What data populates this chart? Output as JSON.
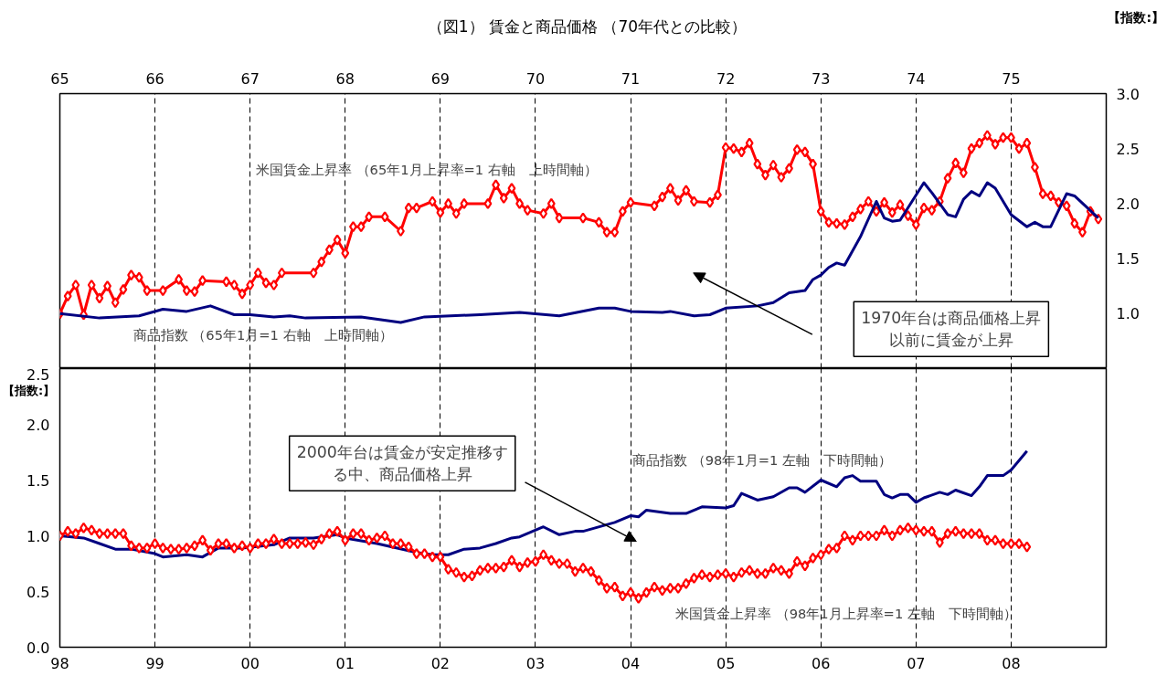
{
  "chart_data": [
    {
      "type": "line",
      "title": "（図1） 賃金と商品価格 （70年代との比較）",
      "ylabel": "【指数:】",
      "xlim": [
        "1965-01",
        "1976-01"
      ],
      "xticks": [
        {
          "value": "1965",
          "label": "65"
        },
        {
          "value": "1966",
          "label": "66"
        },
        {
          "value": "1967",
          "label": "67"
        },
        {
          "value": "1968",
          "label": "68"
        },
        {
          "value": "1969",
          "label": "69"
        },
        {
          "value": "1970",
          "label": "70"
        },
        {
          "value": "1971",
          "label": "71"
        },
        {
          "value": "1972",
          "label": "72"
        },
        {
          "value": "1973",
          "label": "73"
        },
        {
          "value": "1974",
          "label": "74"
        },
        {
          "value": "1975",
          "label": "75"
        }
      ],
      "ylim": [
        0.5,
        3
      ],
      "yticks": [
        {
          "value": 1,
          "label": "1.0"
        },
        1.5,
        {
          "value": 2,
          "label": "2.0"
        },
        2.5,
        {
          "value": 3,
          "label": "3.0"
        }
      ],
      "grid": "x",
      "annotations": [
        "1970年台は商品価格上昇以前に賃金が上昇"
      ],
      "series": [
        {
          "name": "米国賃金上昇率 （65年1月上昇率=1 右軸　上時間軸）",
          "color": "#ff0000",
          "marker": "diamond",
          "x": [
            "1965-01",
            "1965-02",
            "1965-03",
            "1965-04",
            "1965-05",
            "1965-06",
            "1965-07",
            "1965-08",
            "1965-09",
            "1965-10",
            "1965-11",
            "1965-12",
            "1966-02",
            "1966-04",
            "1966-05",
            "1966-06",
            "1966-07",
            "1966-10",
            "1966-11",
            "1966-12",
            "1967-01",
            "1967-02",
            "1967-03",
            "1967-04",
            "1967-05",
            "1967-09",
            "1967-10",
            "1967-11",
            "1967-12",
            "1968-01",
            "1968-02",
            "1968-03",
            "1968-04",
            "1968-06",
            "1968-08",
            "1968-09",
            "1968-10",
            "1968-12",
            "1969-01",
            "1969-02",
            "1969-03",
            "1969-04",
            "1969-07",
            "1969-08",
            "1969-09",
            "1969-10",
            "1969-11",
            "1969-12",
            "1970-02",
            "1970-03",
            "1970-04",
            "1970-07",
            "1970-09",
            "1970-10",
            "1970-11",
            "1970-12",
            "1971-01",
            "1971-04",
            "1971-05",
            "1971-06",
            "1971-07",
            "1971-08",
            "1971-09",
            "1971-11",
            "1971-12",
            "1972-01",
            "1972-02",
            "1972-03",
            "1972-04",
            "1972-05",
            "1972-06",
            "1972-07",
            "1972-08",
            "1972-09",
            "1972-10",
            "1972-11",
            "1972-12",
            "1973-01",
            "1973-02",
            "1973-03",
            "1973-04",
            "1973-05",
            "1973-06",
            "1973-07",
            "1973-08",
            "1973-09",
            "1973-10",
            "1973-11",
            "1973-12",
            "1974-01",
            "1974-02",
            "1974-03",
            "1974-04",
            "1974-05",
            "1974-06",
            "1974-07",
            "1974-08",
            "1974-09",
            "1974-10",
            "1974-11",
            "1974-12",
            "1975-01",
            "1975-02",
            "1975-03",
            "1975-04",
            "1975-05",
            "1975-06",
            "1975-07",
            "1975-08",
            "1975-09",
            "1975-10",
            "1975-11",
            "1975-12"
          ],
          "values": [
            1.0,
            1.16,
            1.26,
            0.99,
            1.26,
            1.14,
            1.25,
            1.1,
            1.22,
            1.35,
            1.33,
            1.21,
            1.21,
            1.31,
            1.21,
            1.2,
            1.3,
            1.29,
            1.26,
            1.18,
            1.26,
            1.37,
            1.28,
            1.26,
            1.37,
            1.37,
            1.47,
            1.58,
            1.67,
            1.55,
            1.79,
            1.79,
            1.88,
            1.88,
            1.75,
            1.96,
            1.96,
            2.02,
            1.92,
            2.0,
            1.91,
            2.0,
            2.0,
            2.17,
            2.05,
            2.14,
            2.0,
            1.94,
            1.91,
            2.0,
            1.87,
            1.87,
            1.83,
            1.74,
            1.74,
            1.93,
            2.01,
            1.98,
            2.06,
            2.14,
            2.03,
            2.12,
            2.02,
            2.01,
            2.08,
            2.51,
            2.5,
            2.47,
            2.55,
            2.36,
            2.26,
            2.35,
            2.24,
            2.32,
            2.49,
            2.47,
            2.36,
            1.93,
            1.83,
            1.82,
            1.81,
            1.88,
            1.95,
            2.02,
            1.93,
            2.01,
            1.92,
            1.99,
            1.89,
            1.81,
            1.96,
            1.94,
            2.02,
            2.23,
            2.37,
            2.28,
            2.5,
            2.55,
            2.62,
            2.54,
            2.6,
            2.6,
            2.5,
            2.55,
            2.33,
            2.09,
            2.07,
            2.01,
            1.98,
            1.82,
            1.74,
            1.93,
            1.86
          ]
        },
        {
          "name": "商品指数 （65年1月=1 右軸　上時間軸）",
          "color": "#000080",
          "marker": "none",
          "x": [
            "1965-01",
            "1965-06",
            "1965-11",
            "1966-02",
            "1966-05",
            "1966-08",
            "1966-11",
            "1967-01",
            "1967-04",
            "1967-06",
            "1967-08",
            "1968-03",
            "1968-08",
            "1968-11",
            "1969-06",
            "1969-11",
            "1970-04",
            "1970-09",
            "1970-11",
            "1971-01",
            "1971-05",
            "1971-06",
            "1971-09",
            "1971-11",
            "1972-01",
            "1972-05",
            "1972-07",
            "1972-09",
            "1972-11",
            "1972-12",
            "1973-01",
            "1973-02",
            "1973-03",
            "1973-04",
            "1973-06",
            "1973-08",
            "1973-09",
            "1973-10",
            "1973-11",
            "1974-02",
            "1974-03",
            "1974-05",
            "1974-06",
            "1974-07",
            "1974-08",
            "1974-09",
            "1974-10",
            "1974-11",
            "1975-01",
            "1975-03",
            "1975-04",
            "1975-05",
            "1975-06",
            "1975-08",
            "1975-09",
            "1975-12"
          ],
          "values": [
            1.0,
            0.96,
            0.98,
            1.04,
            1.02,
            1.07,
            0.99,
            0.99,
            0.97,
            0.98,
            0.96,
            0.97,
            0.92,
            0.97,
            0.99,
            1.01,
            0.98,
            1.05,
            1.05,
            1.02,
            1.01,
            1.02,
            0.98,
            0.99,
            1.05,
            1.07,
            1.1,
            1.19,
            1.21,
            1.31,
            1.35,
            1.42,
            1.46,
            1.44,
            1.7,
            2.02,
            1.87,
            1.84,
            1.85,
            2.19,
            2.1,
            1.9,
            1.88,
            2.04,
            2.11,
            2.07,
            2.19,
            2.14,
            1.9,
            1.79,
            1.83,
            1.79,
            1.79,
            2.09,
            2.07,
            1.87
          ]
        }
      ]
    },
    {
      "type": "line",
      "ylabel": "【指数:】",
      "xlim": [
        "1998-01",
        "2009-01"
      ],
      "xticks": [
        {
          "value": "1998",
          "label": "98"
        },
        {
          "value": "1999",
          "label": "99"
        },
        {
          "value": "2000",
          "label": "00"
        },
        {
          "value": "2001",
          "label": "01"
        },
        {
          "value": "2002",
          "label": "02"
        },
        {
          "value": "2003",
          "label": "03"
        },
        {
          "value": "2004",
          "label": "04"
        },
        {
          "value": "2005",
          "label": "05"
        },
        {
          "value": "2006",
          "label": "06"
        },
        {
          "value": "2007",
          "label": "07"
        },
        {
          "value": "2008",
          "label": "08"
        }
      ],
      "ylim": [
        0,
        2.5
      ],
      "yticks": [
        {
          "value": 0,
          "label": "0.0"
        },
        0.5,
        {
          "value": 1,
          "label": "1.0"
        },
        1.5,
        {
          "value": 2,
          "label": "2.0"
        },
        2.5
      ],
      "grid": "x",
      "annotations": [
        "2000年台は賃金が安定推移する中、商品価格上昇"
      ],
      "series": [
        {
          "name": "商品指数 （98年1月=1 左軸　下時間軸）",
          "color": "#000080",
          "marker": "none",
          "x": [
            "1998-01",
            "1998-04",
            "1998-06",
            "1998-08",
            "1998-10",
            "1999-01",
            "1999-02",
            "1999-05",
            "1999-07",
            "1999-09",
            "1999-12",
            "2000-04",
            "2000-06",
            "2000-09",
            "2000-10",
            "2000-12",
            "2001-01",
            "2001-05",
            "2001-10",
            "2001-12",
            "2002-02",
            "2002-04",
            "2002-06",
            "2002-08",
            "2002-10",
            "2002-11",
            "2003-02",
            "2003-04",
            "2003-06",
            "2003-07",
            "2003-11",
            "2004-01",
            "2004-02",
            "2004-03",
            "2004-06",
            "2004-08",
            "2004-10",
            "2005-01",
            "2005-02",
            "2005-03",
            "2005-05",
            "2005-07",
            "2005-09",
            "2005-10",
            "2005-11",
            "2006-01",
            "2006-03",
            "2006-04",
            "2006-05",
            "2006-06",
            "2006-08",
            "2006-09",
            "2006-10",
            "2006-11",
            "2006-12",
            "2007-01",
            "2007-02",
            "2007-04",
            "2007-05",
            "2007-06",
            "2007-08",
            "2007-09",
            "2007-10",
            "2007-12",
            "2008-01",
            "2008-03"
          ],
          "values": [
            1.0,
            0.98,
            0.93,
            0.88,
            0.88,
            0.84,
            0.81,
            0.83,
            0.81,
            0.89,
            0.89,
            0.92,
            0.98,
            0.98,
            0.99,
            1.01,
            0.98,
            0.93,
            0.85,
            0.83,
            0.83,
            0.88,
            0.89,
            0.93,
            0.98,
            0.99,
            1.08,
            1.01,
            1.04,
            1.04,
            1.12,
            1.18,
            1.17,
            1.23,
            1.2,
            1.2,
            1.26,
            1.25,
            1.27,
            1.38,
            1.32,
            1.35,
            1.43,
            1.43,
            1.39,
            1.5,
            1.44,
            1.52,
            1.54,
            1.49,
            1.49,
            1.37,
            1.34,
            1.37,
            1.37,
            1.3,
            1.34,
            1.39,
            1.37,
            1.41,
            1.36,
            1.44,
            1.54,
            1.54,
            1.59,
            1.76
          ]
        },
        {
          "name": "米国賃金上昇率 （98年1月上昇率=1 左軸　下時間軸）",
          "color": "#ff0000",
          "marker": "diamond",
          "x": [
            "1998-01",
            "1998-02",
            "1998-03",
            "1998-04",
            "1998-05",
            "1998-06",
            "1998-07",
            "1998-08",
            "1998-09",
            "1998-10",
            "1998-11",
            "1998-12",
            "1999-01",
            "1999-02",
            "1999-03",
            "1999-04",
            "1999-05",
            "1999-06",
            "1999-07",
            "1999-08",
            "1999-09",
            "1999-10",
            "1999-11",
            "1999-12",
            "2000-01",
            "2000-02",
            "2000-03",
            "2000-04",
            "2000-05",
            "2000-06",
            "2000-07",
            "2000-08",
            "2000-09",
            "2000-10",
            "2000-11",
            "2000-12",
            "2001-01",
            "2001-02",
            "2001-03",
            "2001-04",
            "2001-05",
            "2001-06",
            "2001-07",
            "2001-08",
            "2001-09",
            "2001-10",
            "2001-11",
            "2001-12",
            "2002-01",
            "2002-02",
            "2002-03",
            "2002-04",
            "2002-05",
            "2002-06",
            "2002-07",
            "2002-08",
            "2002-09",
            "2002-10",
            "2002-11",
            "2002-12",
            "2003-01",
            "2003-02",
            "2003-03",
            "2003-04",
            "2003-05",
            "2003-06",
            "2003-07",
            "2003-08",
            "2003-09",
            "2003-10",
            "2003-11",
            "2003-12",
            "2004-01",
            "2004-02",
            "2004-03",
            "2004-04",
            "2004-05",
            "2004-06",
            "2004-07",
            "2004-08",
            "2004-09",
            "2004-10",
            "2004-11",
            "2004-12",
            "2005-01",
            "2005-02",
            "2005-03",
            "2005-04",
            "2005-05",
            "2005-06",
            "2005-07",
            "2005-08",
            "2005-09",
            "2005-10",
            "2005-11",
            "2005-12",
            "2006-01",
            "2006-02",
            "2006-03",
            "2006-04",
            "2006-05",
            "2006-06",
            "2006-07",
            "2006-08",
            "2006-09",
            "2006-10",
            "2006-11",
            "2006-12",
            "2007-01",
            "2007-02",
            "2007-03",
            "2007-04",
            "2007-05",
            "2007-06",
            "2007-07",
            "2007-08",
            "2007-09",
            "2007-10",
            "2007-11",
            "2007-12",
            "2008-01",
            "2008-02",
            "2008-03"
          ],
          "values": [
            1.0,
            1.04,
            1.02,
            1.07,
            1.05,
            1.02,
            1.02,
            1.02,
            1.02,
            0.91,
            0.89,
            0.89,
            0.93,
            0.89,
            0.88,
            0.88,
            0.89,
            0.91,
            0.96,
            0.87,
            0.93,
            0.93,
            0.89,
            0.91,
            0.89,
            0.93,
            0.93,
            0.97,
            0.93,
            0.93,
            0.93,
            0.94,
            0.92,
            0.97,
            1.02,
            1.04,
            0.96,
            1.02,
            1.02,
            0.96,
            0.98,
            1.0,
            0.93,
            0.93,
            0.9,
            0.84,
            0.84,
            0.81,
            0.81,
            0.7,
            0.67,
            0.63,
            0.64,
            0.69,
            0.71,
            0.71,
            0.72,
            0.78,
            0.72,
            0.76,
            0.77,
            0.83,
            0.78,
            0.75,
            0.75,
            0.68,
            0.71,
            0.68,
            0.6,
            0.53,
            0.54,
            0.46,
            0.49,
            0.44,
            0.49,
            0.54,
            0.51,
            0.53,
            0.53,
            0.57,
            0.62,
            0.65,
            0.63,
            0.65,
            0.66,
            0.63,
            0.67,
            0.69,
            0.66,
            0.66,
            0.71,
            0.69,
            0.66,
            0.77,
            0.73,
            0.8,
            0.83,
            0.88,
            0.89,
            1.0,
            0.96,
            1.0,
            1.0,
            1.0,
            1.05,
            1.0,
            1.05,
            1.07,
            1.05,
            1.04,
            1.04,
            0.94,
            1.02,
            1.04,
            1.02,
            1.02,
            1.02,
            0.96,
            0.96,
            0.93,
            0.93,
            0.93,
            0.9
          ]
        }
      ]
    }
  ]
}
